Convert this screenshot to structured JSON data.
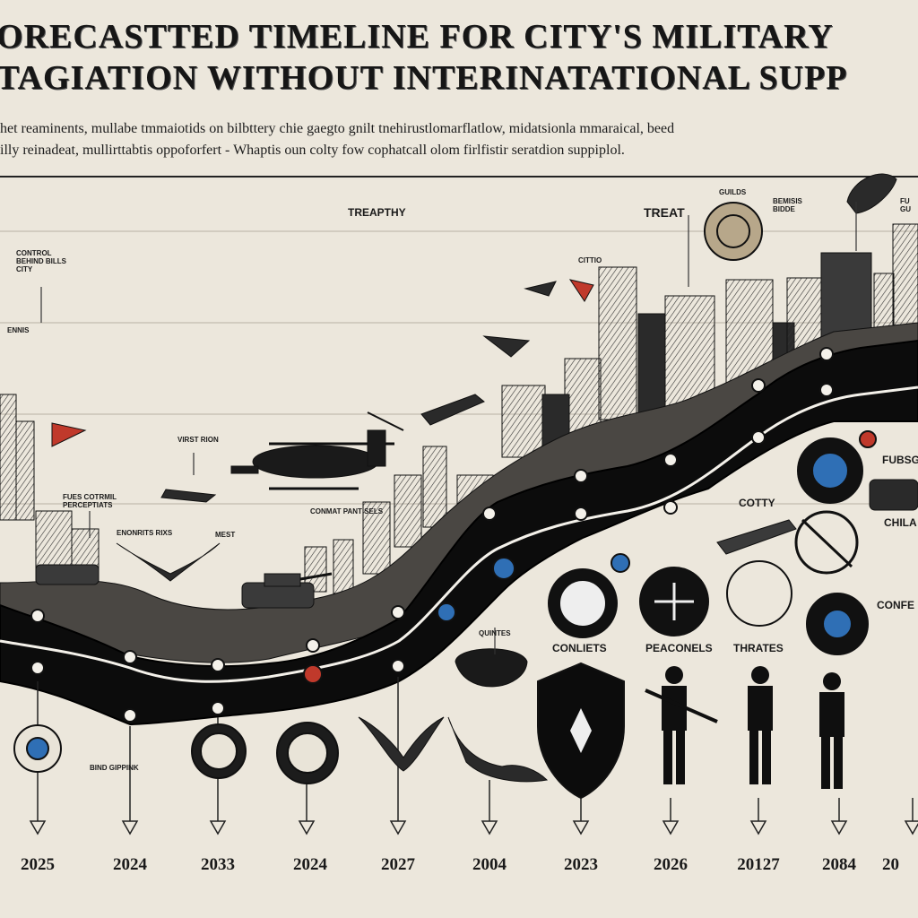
{
  "header": {
    "title_line1": "ORECASTTED TIMELINE FOR CITY'S MILITARY",
    "title_line2": "TAGIATION WITHOUT INTERINATATIONAL SUPP",
    "subtitle_line1": "het reaminents, mullabe tmmaiotids on bilbttery chie gaegto gnilt tnehirustlomarflatlow, midatsionla mmaraical, beed",
    "subtitle_line2": "illy reinadeat, mullirttabtis oppoforfert - Whaptis oun colty fow cophatcall olom firlfistir seratdion suppiplol."
  },
  "labels": {
    "treapthy": "TREAPTHY",
    "treat": "TREAT",
    "coatrol": "CONTROL\nBEHIND BILLS\nCITY",
    "ctitto": "CITTIO",
    "guilds": "GUILDS",
    "bemisi": "BEMISIS\nBIDDE",
    "fur": "FU\nGU",
    "virst": "VIRST RION",
    "fues": "FUES COTRMIL\nPERCEPTIATS",
    "enonet": "ENONRITS RIXS",
    "mest": "MEST",
    "conmat": "CONMAT PANT SELS",
    "cotty": "COTTY",
    "fusse": "FUBSGE",
    "chila": "CHILA",
    "confe": "CONFE",
    "quintes": "QUINTES",
    "conliets": "CONLIETS",
    "peaconels": "PEACONELS",
    "threats": "THRATES",
    "bind": "BIND GIPPINK",
    "ennis": "ENNIS"
  },
  "timeline": {
    "years": [
      "2025",
      "2024",
      "2033",
      "2024",
      "2027",
      "2004",
      "2023",
      "2026",
      "20127",
      "2084",
      "20"
    ]
  },
  "colors": {
    "paper": "#ece7dc",
    "ink": "#141414",
    "accent_red": "#c0392b",
    "accent_blue": "#2f6fb5"
  }
}
